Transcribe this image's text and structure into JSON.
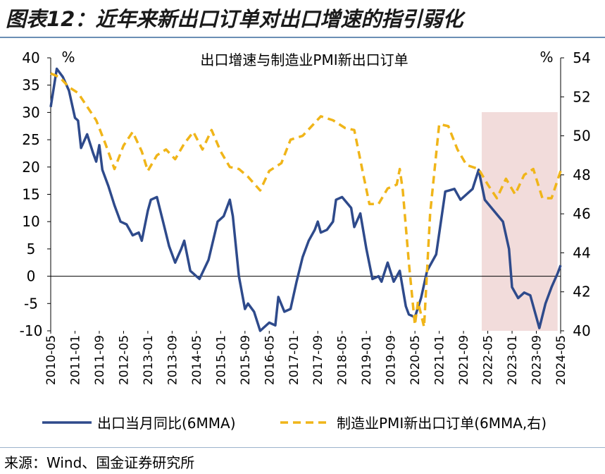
{
  "figure": {
    "title": "图表12：近年来新出口订单对出口增速的指引弱化",
    "source": "来源：Wind、国金证券研究所"
  },
  "chart_data": {
    "type": "line",
    "title": "出口增速与制造业PMI新出口订单",
    "left_axis": {
      "unit": "%",
      "min": -10,
      "max": 40,
      "ticks": [
        -10,
        -5,
        0,
        5,
        10,
        15,
        20,
        25,
        30,
        35,
        40
      ]
    },
    "right_axis": {
      "unit": "%",
      "min": 40,
      "max": 54,
      "ticks": [
        40,
        42,
        44,
        46,
        48,
        50,
        52,
        54
      ]
    },
    "x_tick_labels": [
      "2010-05",
      "2011-01",
      "2011-09",
      "2012-05",
      "2013-01",
      "2013-09",
      "2014-05",
      "2015-01",
      "2015-09",
      "2016-05",
      "2017-01",
      "2017-09",
      "2018-05",
      "2019-01",
      "2019-09",
      "2020-05",
      "2021-01",
      "2021-09",
      "2022-05",
      "2023-01",
      "2023-09",
      "2024-05"
    ],
    "x_range": [
      "2010-05",
      "2024-05"
    ],
    "highlight": {
      "from": "2022-03",
      "to": "2024-04",
      "color": "#f2dcdb"
    },
    "grid": false,
    "legend_position": "bottom",
    "series": [
      {
        "name": "出口当月同比(6MMA)",
        "axis": "left",
        "color": "#2e4a8b",
        "style": "solid",
        "points": [
          [
            "2010-05",
            31
          ],
          [
            "2010-07",
            38
          ],
          [
            "2010-09",
            36.5
          ],
          [
            "2010-11",
            34
          ],
          [
            "2011-01",
            29
          ],
          [
            "2011-02",
            28.5
          ],
          [
            "2011-03",
            23.5
          ],
          [
            "2011-05",
            26
          ],
          [
            "2011-07",
            22.5
          ],
          [
            "2011-08",
            21
          ],
          [
            "2011-09",
            24
          ],
          [
            "2011-10",
            19.5
          ],
          [
            "2011-12",
            16.5
          ],
          [
            "2012-02",
            13
          ],
          [
            "2012-04",
            10
          ],
          [
            "2012-06",
            9.5
          ],
          [
            "2012-08",
            7.5
          ],
          [
            "2012-10",
            8
          ],
          [
            "2012-11",
            6.5
          ],
          [
            "2013-01",
            12
          ],
          [
            "2013-02",
            14
          ],
          [
            "2013-04",
            14.5
          ],
          [
            "2013-06",
            10
          ],
          [
            "2013-08",
            5.5
          ],
          [
            "2013-10",
            2.5
          ],
          [
            "2013-12",
            5
          ],
          [
            "2014-01",
            6.5
          ],
          [
            "2014-03",
            1
          ],
          [
            "2014-06",
            -0.5
          ],
          [
            "2014-09",
            3
          ],
          [
            "2014-12",
            10
          ],
          [
            "2015-02",
            11
          ],
          [
            "2015-04",
            14
          ],
          [
            "2015-05",
            11
          ],
          [
            "2015-07",
            0
          ],
          [
            "2015-09",
            -6
          ],
          [
            "2015-10",
            -5
          ],
          [
            "2015-12",
            -6.5
          ],
          [
            "2016-02",
            -10
          ],
          [
            "2016-05",
            -8.5
          ],
          [
            "2016-07",
            -9
          ],
          [
            "2016-08",
            -3.8
          ],
          [
            "2016-10",
            -6.5
          ],
          [
            "2016-12",
            -6
          ],
          [
            "2017-02",
            -1
          ],
          [
            "2017-04",
            3.5
          ],
          [
            "2017-06",
            6.5
          ],
          [
            "2017-08",
            8.5
          ],
          [
            "2017-09",
            10
          ],
          [
            "2017-10",
            8
          ],
          [
            "2017-12",
            8.5
          ],
          [
            "2018-02",
            10
          ],
          [
            "2018-03",
            14
          ],
          [
            "2018-05",
            14.5
          ],
          [
            "2018-08",
            12.5
          ],
          [
            "2018-09",
            9
          ],
          [
            "2018-11",
            11.5
          ],
          [
            "2019-01",
            5
          ],
          [
            "2019-03",
            -0.5
          ],
          [
            "2019-05",
            0
          ],
          [
            "2019-06",
            -1
          ],
          [
            "2019-08",
            2.5
          ],
          [
            "2019-10",
            -1
          ],
          [
            "2019-12",
            1
          ],
          [
            "2020-02",
            -5.5
          ],
          [
            "2020-03",
            -7
          ],
          [
            "2020-05",
            -7.5
          ],
          [
            "2020-07",
            -4
          ],
          [
            "2020-09",
            1
          ],
          [
            "2020-12",
            4
          ],
          [
            "2021-03",
            15.5
          ],
          [
            "2021-06",
            16
          ],
          [
            "2021-08",
            14
          ],
          [
            "2021-10",
            15
          ],
          [
            "2021-12",
            16
          ],
          [
            "2022-02",
            19.5
          ],
          [
            "2022-04",
            14
          ],
          [
            "2022-07",
            12
          ],
          [
            "2022-10",
            10
          ],
          [
            "2022-12",
            5
          ],
          [
            "2023-01",
            -2
          ],
          [
            "2023-03",
            -4
          ],
          [
            "2023-05",
            -3
          ],
          [
            "2023-07",
            -3.5
          ],
          [
            "2023-10",
            -9.5
          ],
          [
            "2023-12",
            -5
          ],
          [
            "2024-02",
            -2
          ],
          [
            "2024-04",
            0.5
          ],
          [
            "2024-05",
            2
          ]
        ]
      },
      {
        "name": "制造业PMI新出口订单(6MMA,右)",
        "axis": "right",
        "color": "#f0b519",
        "style": "dashed",
        "points": [
          [
            "2010-05",
            53.2
          ],
          [
            "2010-08",
            53
          ],
          [
            "2010-11",
            52.5
          ],
          [
            "2011-02",
            52.2
          ],
          [
            "2011-05",
            51.5
          ],
          [
            "2011-08",
            50.8
          ],
          [
            "2011-11",
            49.6
          ],
          [
            "2012-02",
            48.3
          ],
          [
            "2012-05",
            49.5
          ],
          [
            "2012-08",
            50.2
          ],
          [
            "2012-11",
            49.2
          ],
          [
            "2013-01",
            48.2
          ],
          [
            "2013-04",
            49
          ],
          [
            "2013-07",
            49.3
          ],
          [
            "2013-10",
            48.8
          ],
          [
            "2014-01",
            49.6
          ],
          [
            "2014-04",
            50.2
          ],
          [
            "2014-07",
            49.3
          ],
          [
            "2014-10",
            50.3
          ],
          [
            "2015-01",
            49.2
          ],
          [
            "2015-04",
            48.4
          ],
          [
            "2015-07",
            48.3
          ],
          [
            "2015-10",
            47.9
          ],
          [
            "2016-02",
            47.2
          ],
          [
            "2016-05",
            48.2
          ],
          [
            "2016-09",
            48.6
          ],
          [
            "2016-12",
            49.8
          ],
          [
            "2017-04",
            50
          ],
          [
            "2017-07",
            50.5
          ],
          [
            "2017-10",
            51
          ],
          [
            "2018-02",
            50.8
          ],
          [
            "2018-06",
            50.4
          ],
          [
            "2018-09",
            50.3
          ],
          [
            "2018-12",
            48
          ],
          [
            "2019-02",
            46.5
          ],
          [
            "2019-05",
            46.5
          ],
          [
            "2019-08",
            47.3
          ],
          [
            "2019-11",
            47.5
          ],
          [
            "2019-12",
            48.3
          ],
          [
            "2020-01",
            47.2
          ],
          [
            "2020-03",
            43.5
          ],
          [
            "2020-05",
            40.3
          ],
          [
            "2020-06",
            41.5
          ],
          [
            "2020-08",
            40.2
          ],
          [
            "2020-10",
            46
          ],
          [
            "2021-01",
            50.6
          ],
          [
            "2021-04",
            50.5
          ],
          [
            "2021-07",
            49.3
          ],
          [
            "2021-10",
            48.5
          ],
          [
            "2022-02",
            48.3
          ],
          [
            "2022-05",
            47.5
          ],
          [
            "2022-08",
            46.8
          ],
          [
            "2022-11",
            47.8
          ],
          [
            "2023-02",
            47
          ],
          [
            "2023-05",
            48
          ],
          [
            "2023-08",
            48.3
          ],
          [
            "2023-11",
            46.8
          ],
          [
            "2024-02",
            46.8
          ],
          [
            "2024-05",
            48.2
          ]
        ]
      }
    ]
  }
}
